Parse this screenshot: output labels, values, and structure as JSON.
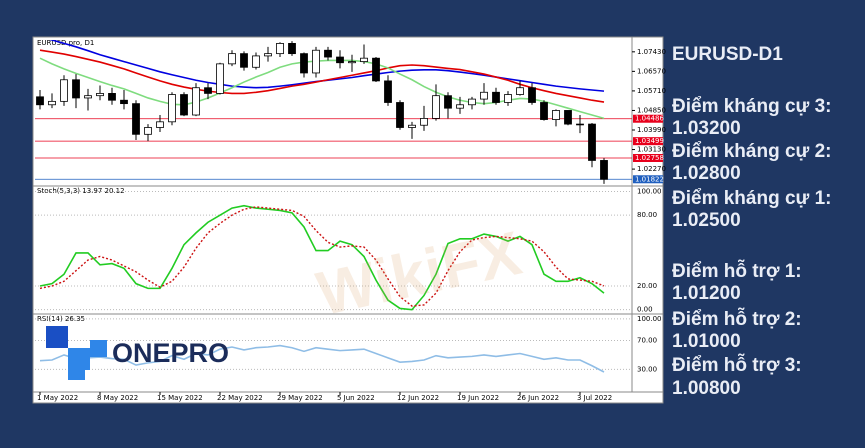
{
  "chart_data": {
    "type": "candlestick",
    "title": "EURUSD.pro, D1",
    "categories": [
      "1 May 2022",
      null,
      null,
      null,
      null,
      "8 May 2022",
      null,
      null,
      null,
      null,
      "15 May 2022",
      null,
      null,
      null,
      null,
      "22 May 2022",
      null,
      null,
      null,
      null,
      "29 May 2022",
      null,
      null,
      null,
      null,
      "5 Jun 2022",
      null,
      null,
      null,
      null,
      "12 Jun 2022",
      null,
      null,
      null,
      null,
      "19 Jun 2022",
      null,
      null,
      null,
      null,
      "26 Jun 2022",
      null,
      null,
      null,
      null,
      "3 Jul 2022",
      null,
      null
    ],
    "open": [
      1.0545,
      1.051,
      1.0525,
      1.062,
      1.054,
      1.055,
      1.056,
      1.053,
      1.0515,
      1.038,
      1.041,
      1.0435,
      1.0555,
      1.0465,
      1.0585,
      1.056,
      1.069,
      1.0735,
      1.0675,
      1.0725,
      1.0735,
      1.078,
      1.0735,
      1.065,
      1.075,
      1.072,
      1.0695,
      1.07,
      1.0715,
      1.0615,
      1.052,
      1.041,
      1.042,
      1.045,
      1.055,
      1.0495,
      1.051,
      1.0535,
      1.0565,
      1.052,
      1.0555,
      1.0585,
      1.052,
      1.0445,
      1.0485,
      1.0425,
      1.0425,
      1.0265
    ],
    "high": [
      1.0575,
      1.056,
      1.064,
      1.0645,
      1.058,
      1.0595,
      1.0585,
      1.0575,
      1.053,
      1.0425,
      1.0465,
      1.0565,
      1.0565,
      1.0605,
      1.0605,
      1.0695,
      1.075,
      1.0745,
      1.074,
      1.0765,
      1.0785,
      1.079,
      1.074,
      1.0765,
      1.0765,
      1.075,
      1.073,
      1.0775,
      1.072,
      1.064,
      1.053,
      1.0435,
      1.0505,
      1.06,
      1.0565,
      1.0545,
      1.0545,
      1.0605,
      1.0585,
      1.057,
      1.0615,
      1.0605,
      1.053,
      1.049,
      1.0485,
      1.0465,
      1.043,
      1.0275
    ],
    "low": [
      1.049,
      1.0495,
      1.0505,
      1.0495,
      1.0485,
      1.053,
      1.051,
      1.049,
      1.0355,
      1.035,
      1.039,
      1.042,
      1.046,
      1.046,
      1.0535,
      1.0555,
      1.068,
      1.066,
      1.0665,
      1.07,
      1.072,
      1.0725,
      1.063,
      1.063,
      1.0705,
      1.067,
      1.0655,
      1.069,
      1.061,
      1.0505,
      1.04,
      1.036,
      1.0395,
      1.044,
      1.045,
      1.047,
      1.049,
      1.051,
      1.051,
      1.0505,
      1.055,
      1.051,
      1.044,
      1.0415,
      1.042,
      1.0385,
      1.0235,
      1.0162
    ],
    "close": [
      1.051,
      1.0525,
      1.062,
      1.054,
      1.055,
      1.056,
      1.053,
      1.0515,
      1.038,
      1.041,
      1.0435,
      1.0555,
      1.0465,
      1.0585,
      1.056,
      1.069,
      1.0735,
      1.0675,
      1.0725,
      1.0735,
      1.078,
      1.0735,
      1.065,
      1.075,
      1.072,
      1.0695,
      1.07,
      1.0715,
      1.0615,
      1.052,
      1.041,
      1.042,
      1.045,
      1.055,
      1.0495,
      1.051,
      1.0535,
      1.0565,
      1.052,
      1.0555,
      1.0585,
      1.052,
      1.0445,
      1.0485,
      1.0425,
      1.0425,
      1.0265,
      1.0182
    ],
    "up_color": "#ffffff",
    "down_color": "#000000",
    "ylim": [
      1.0157,
      1.0795
    ],
    "yticks": [
      {
        "value": 1.0743,
        "label": "1.07430"
      },
      {
        "value": 1.0657,
        "label": "1.06570"
      },
      {
        "value": 1.0571,
        "label": "1.05710"
      },
      {
        "value": 1.0485,
        "label": "1.04850"
      },
      {
        "value": 1.0399,
        "label": "1.03990"
      },
      {
        "value": 1.0313,
        "label": "1.03130"
      },
      {
        "value": 1.0227,
        "label": "1.02270"
      }
    ],
    "series": [
      {
        "color": "#0000e0",
        "values": [
          1.081,
          1.0795,
          1.078,
          1.0765,
          1.0748,
          1.073,
          1.0715,
          1.07,
          1.0685,
          1.067,
          1.0655,
          1.0642,
          1.063,
          1.0618,
          1.0608,
          1.06,
          1.0592,
          1.0588,
          1.0585,
          1.0587,
          1.0592,
          1.0598,
          1.0605,
          1.0612,
          1.0618,
          1.0624,
          1.063,
          1.0638,
          1.0645,
          1.0652,
          1.0658,
          1.0662,
          1.0664,
          1.0664,
          1.066,
          1.0654,
          1.0647,
          1.064,
          1.0632,
          1.0624,
          1.0616,
          1.0608,
          1.06,
          1.0592,
          1.0586,
          1.058,
          1.0575,
          1.057
        ]
      },
      {
        "color": "#e00000",
        "values": [
          1.075,
          1.0742,
          1.0733,
          1.0722,
          1.071,
          1.0698,
          1.0683,
          1.0668,
          1.065,
          1.0632,
          1.0615,
          1.06,
          1.0588,
          1.0578,
          1.057,
          1.0564,
          1.056,
          1.056,
          1.0565,
          1.0572,
          1.0582,
          1.0592,
          1.06,
          1.061,
          1.062,
          1.063,
          1.064,
          1.065,
          1.066,
          1.0672,
          1.0682,
          1.0685,
          1.0682,
          1.0676,
          1.067,
          1.0665,
          1.0655,
          1.0645,
          1.0632,
          1.0618,
          1.06,
          1.0585,
          1.0572,
          1.056,
          1.055,
          1.054,
          1.053,
          1.0522
        ]
      },
      {
        "color": "#7fdc7f",
        "values": [
          1.0715,
          1.069,
          1.0668,
          1.0648,
          1.063,
          1.0612,
          1.0595,
          1.058,
          1.056,
          1.054,
          1.0525,
          1.0512,
          1.051,
          1.0522,
          1.054,
          1.0562,
          1.0585,
          1.061,
          1.0632,
          1.0652,
          1.0675,
          1.069,
          1.0698,
          1.0702,
          1.0705,
          1.0705,
          1.0705,
          1.07,
          1.069,
          1.0672,
          1.0645,
          1.062,
          1.059,
          1.0565,
          1.0545,
          1.053,
          1.052,
          1.0515,
          1.052,
          1.053,
          1.0538,
          1.0535,
          1.0525,
          1.051,
          1.0495,
          1.048,
          1.0465,
          1.045
        ]
      }
    ],
    "levels": [
      {
        "value": 1.04486,
        "color": "#e8001c"
      },
      {
        "value": 1.03499,
        "color": "#e8001c"
      },
      {
        "value": 1.02758,
        "color": "#e8001c"
      },
      {
        "value": 1.01822,
        "color": "#1f5fbf"
      }
    ],
    "indicators": [
      {
        "type": "line",
        "title": "Stoch(5,3,3) 13.97 20.12",
        "ylim": [
          -2,
          103
        ],
        "yticks": [
          {
            "value": 100,
            "label": "100.00"
          },
          {
            "value": 80,
            "label": "80.00"
          },
          {
            "value": 20,
            "label": "20.00"
          },
          {
            "value": 0,
            "label": "0.00"
          }
        ],
        "series": [
          {
            "color": "#22cc22",
            "values": [
              20,
              22,
              30,
              48,
              48,
              38,
              39,
              35,
              22,
              18,
              18,
              35,
              55,
              65,
              74,
              80,
              86,
              88,
              86,
              85,
              84,
              82,
              70,
              50,
              50,
              58,
              55,
              45,
              25,
              8,
              1,
              0,
              12,
              30,
              56,
              60,
              60,
              64,
              62,
              58,
              62,
              55,
              30,
              24,
              24,
              27,
              22,
              13.97
            ]
          },
          {
            "color": "#cc1111",
            "dashed": true,
            "values": [
              18,
              20,
              24,
              33,
              42,
              45,
              42,
              37,
              32,
              25,
              19,
              24,
              36,
              52,
              65,
              73,
              80,
              85,
              87,
              86,
              85,
              84,
              79,
              67,
              57,
              53,
              54,
              53,
              42,
              26,
              11,
              3,
              4,
              14,
              33,
              49,
              59,
              61,
              62,
              61,
              60,
              58,
              49,
              36,
              26,
              25,
              24,
              20.12
            ]
          }
        ]
      },
      {
        "type": "line",
        "title": "RSI(14) 26.35",
        "ylim": [
          0,
          104
        ],
        "yticks": [
          {
            "value": 100,
            "label": "100.00"
          },
          {
            "value": 70,
            "label": "70.00"
          },
          {
            "value": 30,
            "label": "30.00"
          }
        ],
        "series": [
          {
            "color": "#8fbde6",
            "values": [
              42,
              43,
              50,
              45,
              46,
              47,
              45,
              44,
              36,
              39,
              41,
              49,
              44,
              52,
              50,
              58,
              61,
              57,
              60,
              61,
              63,
              60,
              55,
              60,
              58,
              56,
              57,
              58,
              52,
              46,
              40,
              41,
              43,
              49,
              46,
              47,
              48,
              50,
              48,
              50,
              52,
              48,
              44,
              46,
              43,
              43,
              35,
              26.35
            ]
          }
        ]
      }
    ]
  },
  "watermark": "WikiFX",
  "logo": "ONEPRO",
  "panel": {
    "title": "EURUSD-D1",
    "levels": [
      {
        "label": "Điểm kháng cự 3:",
        "value": "1.03200"
      },
      {
        "label": "Điểm kháng cự 2:",
        "value": "1.02800"
      },
      {
        "label": "Điểm kháng cự 1:",
        "value": "1.02500"
      },
      {
        "label": "Điểm hỗ trợ 1:",
        "value": "1.01200"
      },
      {
        "label": "Điểm hỗ trợ 2:",
        "value": "1.01000"
      },
      {
        "label": "Điểm hỗ trợ 3:",
        "value": "1.00800"
      }
    ]
  }
}
